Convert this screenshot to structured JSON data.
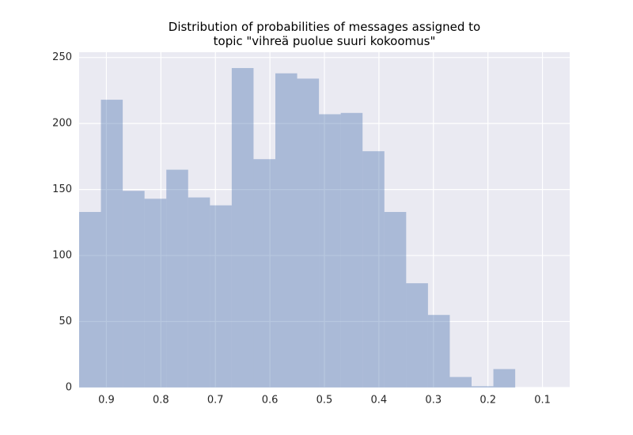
{
  "chart_data": {
    "type": "histogram",
    "title": "Distribution of probabilities of messages assigned to\ntopic \"vihreä puolue suuri kokoomus\"",
    "bins": [
      0.95,
      0.91,
      0.87,
      0.83,
      0.79,
      0.75,
      0.71,
      0.67,
      0.63,
      0.59,
      0.55,
      0.51,
      0.47,
      0.43,
      0.39,
      0.35,
      0.31,
      0.27,
      0.23,
      0.19,
      0.15
    ],
    "counts": [
      133,
      218,
      149,
      143,
      165,
      144,
      138,
      242,
      173,
      238,
      234,
      207,
      208,
      179,
      133,
      79,
      55,
      8,
      1,
      14
    ],
    "color": "#4c72b0",
    "alpha": 0.4,
    "xlim": [
      0.95,
      0.05
    ],
    "xticks": [
      0.9,
      0.8,
      0.7,
      0.6,
      0.5,
      0.4,
      0.3,
      0.2,
      0.1
    ],
    "ylim": [
      0,
      254
    ],
    "yticks": [
      0,
      50,
      100,
      150,
      200,
      250
    ],
    "grid": true
  }
}
